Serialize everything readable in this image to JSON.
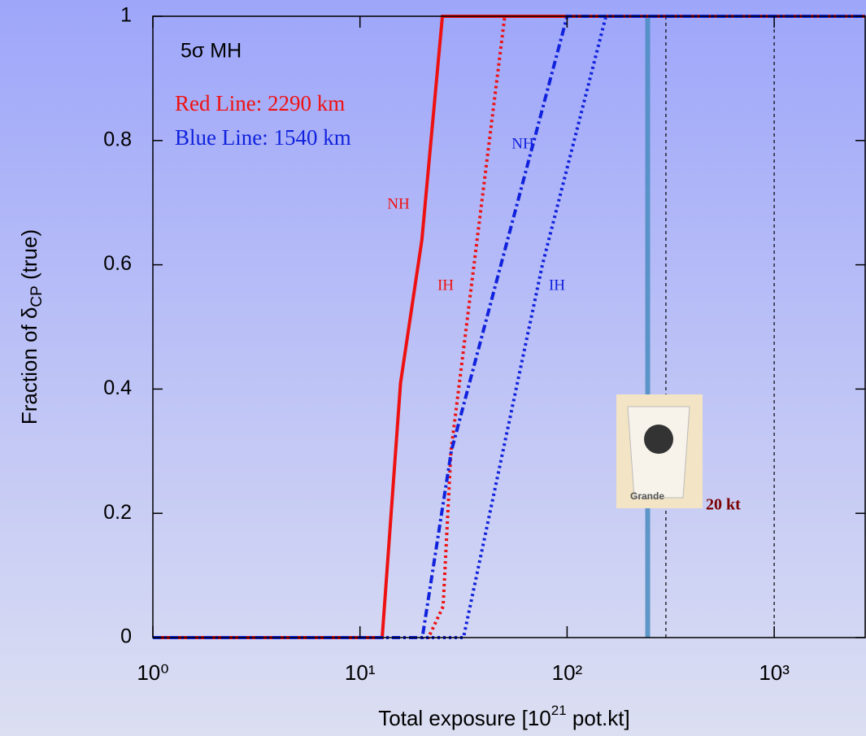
{
  "chart_data": {
    "type": "line",
    "xlabel": [
      "Total exposure [10",
      "21",
      " pot.kt]"
    ],
    "ylabel": [
      "Fraction of δ",
      "CP",
      " (true)"
    ],
    "log_x": true,
    "xlim": [
      1,
      2750
    ],
    "ylim": [
      0,
      1
    ],
    "xticks": [
      {
        "value": 1,
        "label": "10⁰"
      },
      {
        "value": 10,
        "label": "10¹"
      },
      {
        "value": 100,
        "label": "10²"
      },
      {
        "value": 1000,
        "label": "10³"
      }
    ],
    "yticks": [
      0,
      0.2,
      0.4,
      0.6,
      0.8,
      1
    ],
    "series": [
      {
        "name": "NH",
        "color": "#ee1111",
        "style": "solid",
        "x": [
          1,
          12.8,
          15.7,
          19.9,
          25,
          2750
        ],
        "values": [
          0,
          0,
          0.41,
          0.64,
          1,
          1
        ]
      },
      {
        "name": "IH",
        "color": "#ee1111",
        "style": "dotted",
        "x": [
          1,
          21.4,
          25.2,
          27.5,
          50,
          2750
        ],
        "values": [
          0,
          0,
          0.05,
          0.3,
          1,
          1
        ]
      },
      {
        "name": "NH",
        "color": "#1122dd",
        "style": "dashdot",
        "x": [
          1,
          20,
          27.6,
          100,
          2750
        ],
        "values": [
          0,
          0,
          0.3,
          1,
          1
        ]
      },
      {
        "name": "IH",
        "color": "#1122dd",
        "style": "dotted",
        "x": [
          1,
          31.6,
          76,
          154,
          2750
        ],
        "values": [
          0,
          0,
          0.6,
          1,
          1
        ]
      }
    ],
    "vlines": [
      {
        "x": 245,
        "color": "#4a8cc0",
        "style": "solid"
      },
      {
        "x": 300,
        "color": "#000000",
        "style": "dashed"
      },
      {
        "x": 1000,
        "color": "#000000",
        "style": "dashed"
      }
    ],
    "annotations": {
      "mh": "5σ MH",
      "red_line": "Red Line: 2290 km",
      "blue_line": "Blue Line: 1540 km",
      "cup": "Grande",
      "detector": "20 kt"
    }
  }
}
